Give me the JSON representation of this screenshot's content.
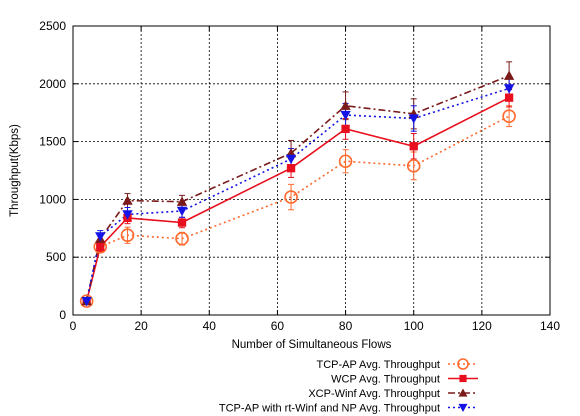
{
  "chart_data": {
    "type": "line",
    "xlabel": "Number of Simultaneous Flows",
    "ylabel": "Throughput(Kbps)",
    "xlim": [
      0,
      140
    ],
    "ylim": [
      0,
      2500
    ],
    "xticks": [
      0,
      20,
      40,
      60,
      80,
      100,
      120,
      140
    ],
    "yticks": [
      0,
      500,
      1000,
      1500,
      2000,
      2500
    ],
    "grid": true,
    "legend_position": "bottom-right",
    "x": [
      4,
      8,
      16,
      32,
      64,
      80,
      100,
      128
    ],
    "series": [
      {
        "name": "TCP-AP Avg. Throughput",
        "values": [
          120,
          590,
          690,
          660,
          1020,
          1330,
          1290,
          1720
        ],
        "errors": [
          20,
          50,
          70,
          55,
          110,
          100,
          120,
          90
        ],
        "color": "#ff6a2e",
        "marker": "circle-open",
        "dash": "dotted"
      },
      {
        "name": "WCP Avg. Throughput",
        "values": [
          120,
          590,
          840,
          800,
          1270,
          1610,
          1460,
          1880
        ],
        "errors": [
          20,
          40,
          50,
          45,
          80,
          90,
          110,
          80
        ],
        "color": "#e8101e",
        "marker": "square",
        "dash": "solid"
      },
      {
        "name": "XCP-Winf Avg. Throughput",
        "values": [
          120,
          660,
          990,
          980,
          1400,
          1810,
          1740,
          2070
        ],
        "errors": [
          20,
          50,
          60,
          55,
          110,
          120,
          130,
          120
        ],
        "color": "#7a1a1a",
        "marker": "triangle-up",
        "dash": "dashdot"
      },
      {
        "name": "TCP-AP with rt-Winf and NP Avg. Throughput",
        "values": [
          120,
          680,
          870,
          900,
          1350,
          1730,
          1700,
          1960
        ],
        "errors": [
          20,
          50,
          60,
          55,
          90,
          100,
          110,
          90
        ],
        "color": "#1414e6",
        "marker": "triangle-down",
        "dash": "dotted"
      }
    ]
  }
}
